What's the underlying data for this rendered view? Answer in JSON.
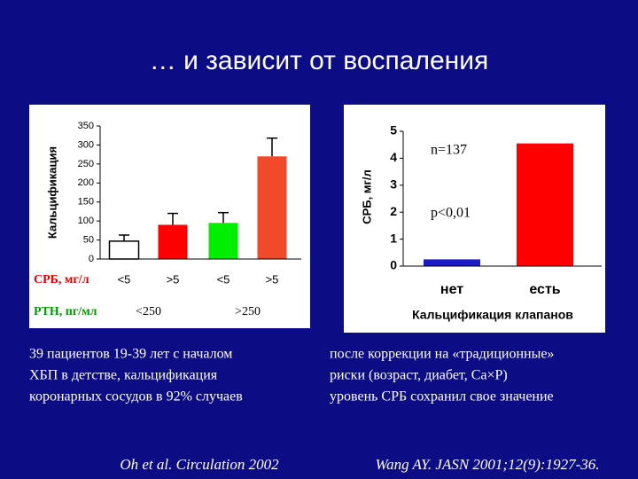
{
  "title": "… и зависит от воспаления",
  "chart_data": [
    {
      "type": "bar",
      "y_label": "Кальцификация",
      "category_label": "СРБ, мг/л",
      "categories": [
        "<5",
        ">5",
        "<5",
        ">5"
      ],
      "values": [
        47,
        90,
        95,
        270
      ],
      "errors": [
        16,
        30,
        27,
        48
      ],
      "colors": [
        "#ffffff",
        "#ff0000",
        "#00ee00",
        "#f04a2a"
      ],
      "group_label": "PTH, пг/мл",
      "groups": [
        "<250",
        ">250"
      ],
      "ylim": [
        0,
        350
      ],
      "yticks": [
        0,
        50,
        100,
        150,
        200,
        250,
        300,
        350
      ]
    },
    {
      "type": "bar",
      "y_label": "СРБ, мг/л",
      "x_label": "Кальцификация клапанов",
      "categories": [
        "нет",
        "есть"
      ],
      "values": [
        0.25,
        4.55
      ],
      "colors": [
        "#1a1acc",
        "#ff0000"
      ],
      "annotations": [
        "n=137",
        "p<0,01"
      ],
      "ylim": [
        0,
        5
      ],
      "yticks": [
        0,
        1,
        2,
        3,
        4,
        5
      ]
    }
  ],
  "left_text": [
    "39 пациентов 19-39 лет с началом",
    "ХБП в детстве, кальцификация",
    "коронарных сосудов в 92% случаев"
  ],
  "right_text": [
    "после коррекции на «традиционные»",
    "риски (возраст, диабет, Ca×P)",
    "уровень СРБ сохранил свое значение"
  ],
  "left_citation": "Oh et al. Circulation 2002",
  "right_citation": "Wang AY. JASN 2001;12(9):1927-36."
}
